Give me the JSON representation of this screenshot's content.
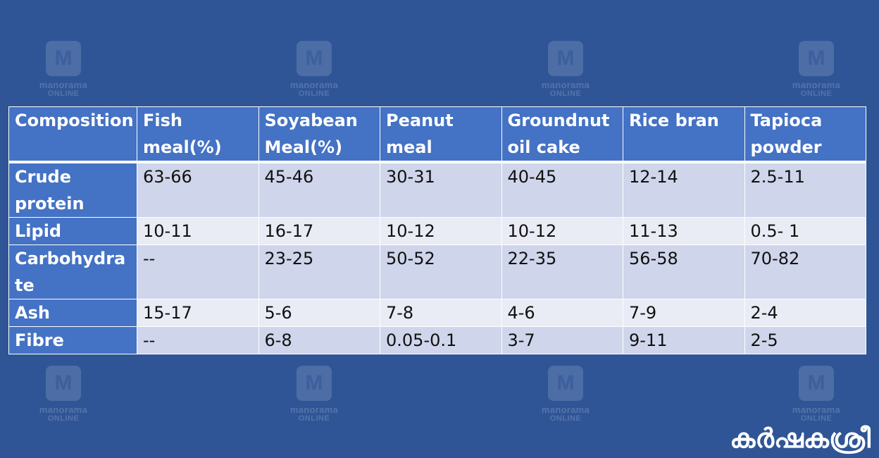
{
  "watermark": {
    "logo": "M",
    "line1": "manorama",
    "line2": "ONLINE"
  },
  "table": {
    "headers": [
      "Composition",
      "Fish meal(%)",
      "Soyabean Meal(%)",
      "Peanut meal",
      "Groundnut oil cake",
      "Rice bran",
      "Tapioca powder"
    ],
    "rows": [
      {
        "label": "Crude protein",
        "cells": [
          "63-66",
          "45-46",
          "30-31",
          " 40-45",
          "12-14",
          "2.5-11"
        ]
      },
      {
        "label": "Lipid",
        "cells": [
          "10-11",
          "16-17",
          "10-12",
          "10-12",
          "11-13",
          "0.5- 1"
        ]
      },
      {
        "label": "Carbohydrate",
        "cells": [
          "--",
          "23-25",
          "50-52",
          "22-35",
          "56-58",
          "70-82"
        ]
      },
      {
        "label": "Ash",
        "cells": [
          "15-17",
          "5-6",
          "7-8",
          "4-6",
          "7-9",
          "2-4"
        ]
      },
      {
        "label": "Fibre",
        "cells": [
          "--",
          "6-8",
          "0.05-0.1",
          "3-7",
          "9-11",
          "2-5"
        ]
      }
    ]
  },
  "brand": "കർഷകശ്രീ"
}
